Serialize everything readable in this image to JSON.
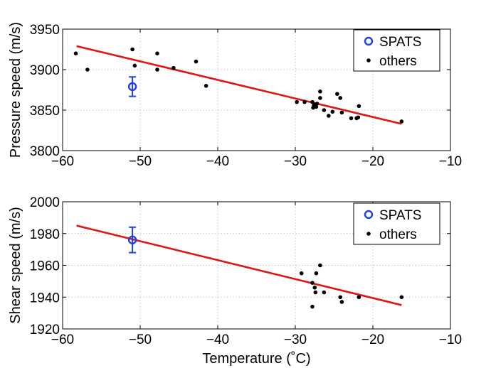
{
  "chart_data": [
    {
      "type": "scatter",
      "ylabel": "Pressure speed (m/s)",
      "xlabel": "",
      "xlim": [
        -60,
        -10
      ],
      "ylim": [
        3800,
        3950
      ],
      "xticks": [
        -60,
        -50,
        -40,
        -30,
        -20,
        -10
      ],
      "yticks": [
        3800,
        3850,
        3900,
        3950
      ],
      "xtick_labels": [
        "−60",
        "−50",
        "−40",
        "−30",
        "−20",
        "−10"
      ],
      "ytick_labels": [
        "3800",
        "3850",
        "3900",
        "3950"
      ],
      "grid": true,
      "legend_position": "top-right",
      "series": [
        {
          "name": "SPATS",
          "style": "open-circle-errorbar",
          "color": "#1f3fe0",
          "points": [
            {
              "x": -51,
              "y": 3879,
              "err": 12
            }
          ]
        },
        {
          "name": "others",
          "style": "dot",
          "color": "#000000",
          "points": [
            {
              "x": -58.3,
              "y": 3920
            },
            {
              "x": -56.8,
              "y": 3900
            },
            {
              "x": -51,
              "y": 3925
            },
            {
              "x": -50.7,
              "y": 3905
            },
            {
              "x": -47.8,
              "y": 3920
            },
            {
              "x": -47.8,
              "y": 3900
            },
            {
              "x": -45.7,
              "y": 3902
            },
            {
              "x": -42.8,
              "y": 3910
            },
            {
              "x": -41.5,
              "y": 3880
            },
            {
              "x": -29.8,
              "y": 3860
            },
            {
              "x": -28.8,
              "y": 3860
            },
            {
              "x": -27.8,
              "y": 3860
            },
            {
              "x": -27.6,
              "y": 3856
            },
            {
              "x": -27.7,
              "y": 3853
            },
            {
              "x": -27.4,
              "y": 3857
            },
            {
              "x": -27.2,
              "y": 3858
            },
            {
              "x": -27.3,
              "y": 3854
            },
            {
              "x": -26.8,
              "y": 3873
            },
            {
              "x": -26.8,
              "y": 3865
            },
            {
              "x": -26.3,
              "y": 3850
            },
            {
              "x": -25.7,
              "y": 3843
            },
            {
              "x": -25.2,
              "y": 3848
            },
            {
              "x": -24.6,
              "y": 3870
            },
            {
              "x": -24.2,
              "y": 3865
            },
            {
              "x": -24,
              "y": 3847
            },
            {
              "x": -22.8,
              "y": 3840
            },
            {
              "x": -22.1,
              "y": 3840
            },
            {
              "x": -21.9,
              "y": 3841
            },
            {
              "x": -21.8,
              "y": 3855
            },
            {
              "x": -16.3,
              "y": 3836
            }
          ]
        },
        {
          "name": "fit",
          "style": "line",
          "color": "#e01515",
          "in_legend": false,
          "points": [
            {
              "x": -58.2,
              "y": 3929
            },
            {
              "x": -16.3,
              "y": 3833
            }
          ]
        }
      ]
    },
    {
      "type": "scatter",
      "ylabel": "Shear speed (m/s)",
      "xlabel": "Temperature (˚C)",
      "xlim": [
        -60,
        -10
      ],
      "ylim": [
        1920,
        2000
      ],
      "xticks": [
        -60,
        -50,
        -40,
        -30,
        -20,
        -10
      ],
      "yticks": [
        1920,
        1940,
        1960,
        1980,
        2000
      ],
      "xtick_labels": [
        "−60",
        "−50",
        "−40",
        "−30",
        "−20",
        "−10"
      ],
      "ytick_labels": [
        "1920",
        "1940",
        "1960",
        "1980",
        "2000"
      ],
      "grid": true,
      "legend_position": "top-right",
      "series": [
        {
          "name": "SPATS",
          "style": "open-circle-errorbar",
          "color": "#1f3fe0",
          "points": [
            {
              "x": -51,
              "y": 1976,
              "err": 8
            }
          ]
        },
        {
          "name": "others",
          "style": "dot",
          "color": "#000000",
          "points": [
            {
              "x": -29.2,
              "y": 1955
            },
            {
              "x": -27.8,
              "y": 1949
            },
            {
              "x": -27.5,
              "y": 1946
            },
            {
              "x": -27.3,
              "y": 1955
            },
            {
              "x": -27.4,
              "y": 1943
            },
            {
              "x": -26.8,
              "y": 1960
            },
            {
              "x": -26.3,
              "y": 1943
            },
            {
              "x": -27.8,
              "y": 1934
            },
            {
              "x": -24.2,
              "y": 1940
            },
            {
              "x": -24,
              "y": 1937
            },
            {
              "x": -21.8,
              "y": 1940
            },
            {
              "x": -16.3,
              "y": 1940
            }
          ]
        },
        {
          "name": "fit",
          "style": "line",
          "color": "#e01515",
          "in_legend": false,
          "points": [
            {
              "x": -58.2,
              "y": 1985
            },
            {
              "x": -16.3,
              "y": 1935
            }
          ]
        }
      ]
    }
  ]
}
